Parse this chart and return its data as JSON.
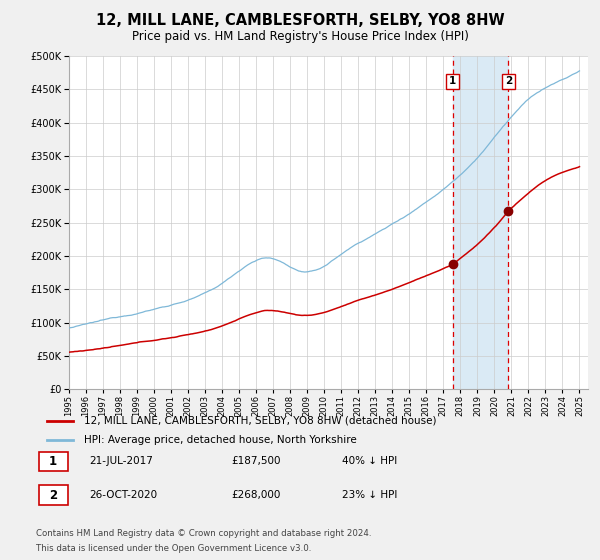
{
  "title": "12, MILL LANE, CAMBLESFORTH, SELBY, YO8 8HW",
  "subtitle": "Price paid vs. HM Land Registry's House Price Index (HPI)",
  "legend_line1": "12, MILL LANE, CAMBLESFORTH, SELBY, YO8 8HW (detached house)",
  "legend_line2": "HPI: Average price, detached house, North Yorkshire",
  "transaction1_label": "1",
  "transaction1_date": "21-JUL-2017",
  "transaction1_price": "£187,500",
  "transaction1_pct": "40% ↓ HPI",
  "transaction2_label": "2",
  "transaction2_date": "26-OCT-2020",
  "transaction2_price": "£268,000",
  "transaction2_pct": "23% ↓ HPI",
  "footnote1": "Contains HM Land Registry data © Crown copyright and database right 2024.",
  "footnote2": "This data is licensed under the Open Government Licence v3.0.",
  "hpi_color": "#7fb8d8",
  "price_color": "#cc0000",
  "dot_color": "#880000",
  "vline_color": "#dd0000",
  "highlight_color": "#daeaf5",
  "grid_color": "#cccccc",
  "bg_color": "#f0f0f0",
  "plot_bg_color": "#ffffff",
  "ylim": [
    0,
    500000
  ],
  "yticks": [
    0,
    50000,
    100000,
    150000,
    200000,
    250000,
    300000,
    350000,
    400000,
    450000,
    500000
  ],
  "transaction1_year": 2017.55,
  "transaction2_year": 2020.82,
  "transaction1_value": 187500,
  "transaction2_value": 268000
}
